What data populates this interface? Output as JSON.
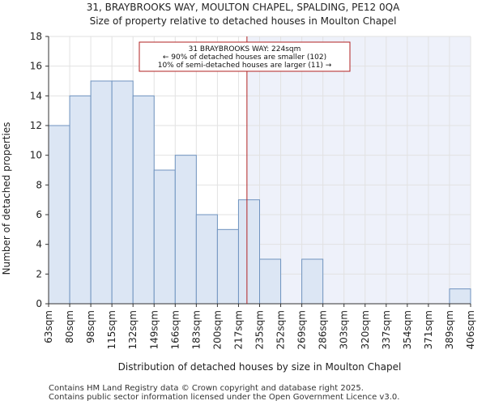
{
  "page": {
    "title_line1": "31, BRAYBROOKS WAY, MOULTON CHAPEL, SPALDING, PE12 0QA",
    "title_line2": "Size of property relative to detached houses in Moulton Chapel",
    "footer_line1": "Contains HM Land Registry data © Crown copyright and database right 2025.",
    "footer_line2": "Contains public sector information licensed under the Open Government Licence v3.0."
  },
  "chart_data": {
    "type": "bar",
    "title": "Distribution of detached houses by size in Moulton Chapel",
    "xlabel": "Distribution of detached houses by size in Moulton Chapel",
    "ylabel": "Number of detached properties",
    "ylim": [
      0,
      18
    ],
    "yticks": [
      0,
      2,
      4,
      6,
      8,
      10,
      12,
      14,
      16,
      18
    ],
    "bin_edges": [
      "63sqm",
      "80sqm",
      "98sqm",
      "115sqm",
      "132sqm",
      "149sqm",
      "166sqm",
      "183sqm",
      "200sqm",
      "217sqm",
      "235sqm",
      "252sqm",
      "269sqm",
      "286sqm",
      "303sqm",
      "320sqm",
      "337sqm",
      "354sqm",
      "371sqm",
      "389sqm",
      "406sqm"
    ],
    "values": [
      12,
      14,
      15,
      15,
      14,
      9,
      10,
      6,
      5,
      7,
      3,
      0,
      3,
      0,
      0,
      0,
      0,
      0,
      0,
      1
    ],
    "marker": {
      "value_sqm": 224,
      "bin_position": 9.4,
      "label_line1": "31 BRAYBROOKS WAY: 224sqm",
      "label_line2": "← 90% of detached houses are smaller (102)",
      "label_line3": "10% of semi-detached houses are larger (11) →"
    },
    "colors": {
      "bar_fill": "#dce6f4",
      "bar_stroke": "#6f93bf",
      "shade": "#eef1fa",
      "marker": "#b22222",
      "axis": "#333333"
    }
  }
}
